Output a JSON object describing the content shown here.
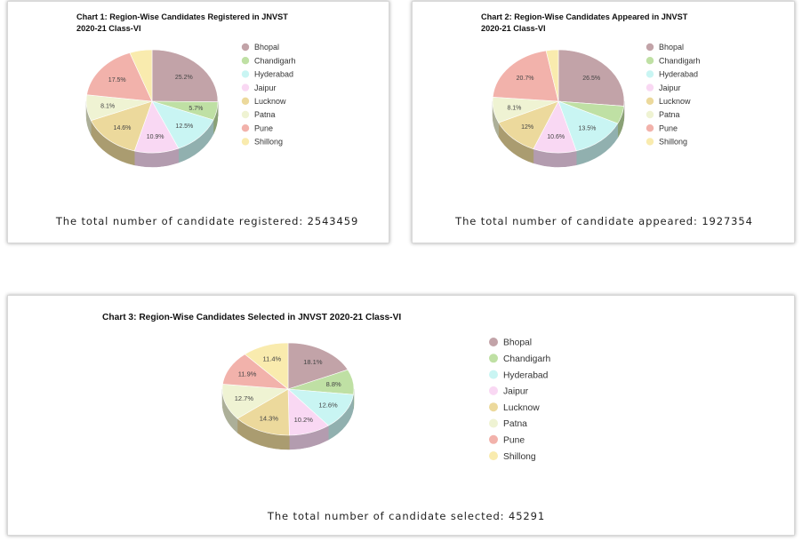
{
  "colors": [
    "#c2a3a8",
    "#bfe0a4",
    "#c9f5f3",
    "#f9d8f3",
    "#ecd99c",
    "#eff3d3",
    "#f2b2ab",
    "#f9ebae"
  ],
  "chart_data": [
    {
      "type": "pie",
      "title_lines": [
        "Chart 1: Region-Wise Candidates Registered in JNVST",
        "2020-21 Class-VI"
      ],
      "legend": [
        "Bhopal",
        "Chandigarh",
        "Hyderabad",
        "Jaipur",
        "Lucknow",
        "Patna",
        "Pune",
        "Shillong"
      ],
      "values": [
        25.2,
        5.7,
        12.5,
        10.9,
        14.6,
        8.1,
        17.5,
        5.5
      ],
      "labels": [
        "25.2%",
        "5.7%",
        "12.5%",
        "10.9%",
        "14.6%",
        "8.1%",
        "17.5%",
        ""
      ],
      "legend_placement": "right",
      "footer": "The total number of candidate registered: 2543459"
    },
    {
      "type": "pie",
      "title_lines": [
        "Chart 2: Region-Wise Candidates Appeared in JNVST",
        "2020-21 Class-VI"
      ],
      "legend": [
        "Bhopal",
        "Chandigarh",
        "Hyderabad",
        "Jaipur",
        "Lucknow",
        "Patna",
        "Pune",
        "Shillong"
      ],
      "values": [
        26.5,
        5.6,
        13.5,
        10.6,
        12.0,
        8.1,
        20.7,
        3.0
      ],
      "labels": [
        "26.5%",
        "",
        "13.5%",
        "10.6%",
        "12%",
        "8.1%",
        "20.7%",
        ""
      ],
      "legend_placement": "right",
      "footer": "The total number of candidate appeared: 1927354"
    },
    {
      "type": "pie",
      "title_lines": [
        "Chart 3: Region-Wise Candidates Selected in JNVST 2020-21 Class-VI"
      ],
      "legend": [
        "Bhopal",
        "Chandigarh",
        "Hyderabad",
        "Jaipur",
        "Lucknow",
        "Patna",
        "Pune",
        "Shillong"
      ],
      "values": [
        18.1,
        8.8,
        12.6,
        10.2,
        14.3,
        12.7,
        11.9,
        11.4
      ],
      "labels": [
        "18.1%",
        "8.8%",
        "12.6%",
        "10.2%",
        "14.3%",
        "12.7%",
        "11.9%",
        "11.4%"
      ],
      "legend_placement": "right",
      "footer": "The total number of candidate selected: 45291"
    }
  ]
}
